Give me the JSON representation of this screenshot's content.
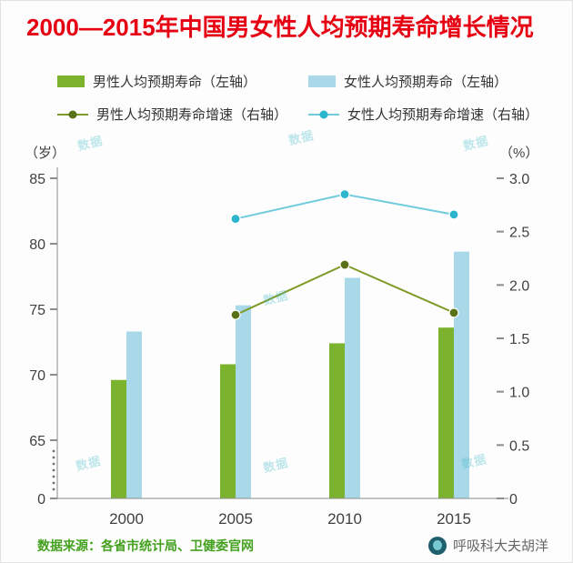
{
  "title": "2000—2015年中国男女性人均预期寿命增长情况",
  "legend": {
    "items": [
      {
        "label": "男性人均预期寿命（左轴）",
        "type": "bar",
        "color": "#7bb32e",
        "marker": "#7bb32e"
      },
      {
        "label": "女性人均预期寿命（左轴）",
        "type": "bar",
        "color": "#a9d9e9",
        "marker": "#a9d9e9"
      },
      {
        "label": "男性人均预期寿命增速（右轴）",
        "type": "line",
        "color": "#7f9a28",
        "marker": "#5a7216"
      },
      {
        "label": "女性人均预期寿命增速（右轴）",
        "type": "line",
        "color": "#6fcbdd",
        "marker": "#2cb6ce"
      }
    ]
  },
  "chart_data": {
    "type": "bar+line combo",
    "title": "2000—2015年中国男女性人均预期寿命增长情况",
    "categories": [
      "2000",
      "2005",
      "2010",
      "2015"
    ],
    "bar_series": [
      {
        "key": "male",
        "name": "男性人均预期寿命（左轴）",
        "axis": "left",
        "unit": "岁",
        "color": "#7bb32e",
        "values": [
          69.6,
          70.8,
          72.4,
          73.6
        ]
      },
      {
        "key": "female",
        "name": "女性人均预期寿命（左轴）",
        "axis": "left",
        "unit": "岁",
        "color": "#a9d9e9",
        "values": [
          73.3,
          75.3,
          77.4,
          79.4
        ]
      }
    ],
    "line_series": [
      {
        "key": "male",
        "name": "男性人均预期寿命增速（右轴）",
        "axis": "right",
        "unit": "%",
        "color": "#7f9a28",
        "marker": "#5a7216",
        "values": [
          null,
          1.72,
          2.19,
          1.74
        ]
      },
      {
        "key": "female",
        "name": "女性人均预期寿命增速（右轴）",
        "axis": "right",
        "unit": "%",
        "color": "#6fcbdd",
        "marker": "#2cb6ce",
        "values": [
          null,
          2.62,
          2.85,
          2.66
        ]
      }
    ],
    "left_axis": {
      "label": "（岁）",
      "ticks": [
        "85",
        "80",
        "75",
        "70",
        "65",
        "0"
      ],
      "broken": true,
      "visible_range": [
        65,
        85
      ]
    },
    "right_axis": {
      "label": "（%）",
      "ticks": [
        "3.0",
        "2.5",
        "2.0",
        "1.5",
        "1.0",
        "0.5",
        "0"
      ],
      "range": [
        0,
        3
      ]
    },
    "grid": false,
    "legend_position": "top"
  },
  "watermark": "数据",
  "footer": {
    "source": "数据来源：各省市统计局、卫健委官网",
    "author": "呼吸科大夫胡洋"
  }
}
